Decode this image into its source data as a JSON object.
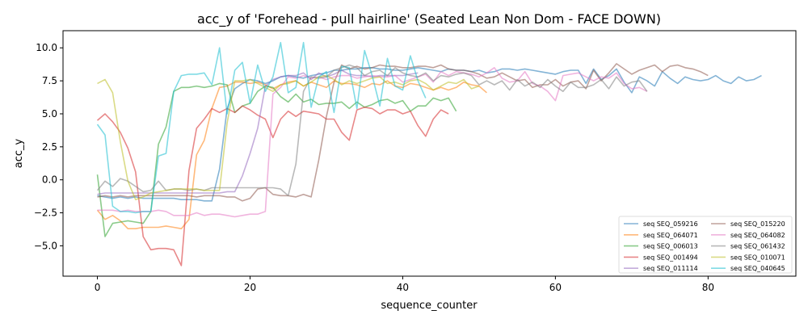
{
  "chart_data": {
    "type": "line",
    "title": "acc_y of 'Forehead - pull hairline' (Seated Lean Non Dom - FACE DOWN)",
    "xlabel": "sequence_counter",
    "ylabel": "acc_y",
    "xlim": [
      -4.5,
      91.5
    ],
    "ylim": [
      -7.3,
      11.3
    ],
    "xticks": [
      0,
      20,
      40,
      60,
      80
    ],
    "yticks": [
      -5.0,
      -2.5,
      0.0,
      2.5,
      5.0,
      7.5,
      10.0
    ],
    "xtick_labels": [
      "0",
      "20",
      "40",
      "60",
      "80"
    ],
    "ytick_labels": [
      "−5.0",
      "−2.5",
      "0.0",
      "2.5",
      "5.0",
      "7.5",
      "10.0"
    ],
    "grid": false,
    "legend_position": "lower-right",
    "legend_columns": 2,
    "series": [
      {
        "name": "seq SEQ_059216",
        "color": "#1f77b4",
        "x": [
          0,
          1,
          2,
          3,
          4,
          5,
          6,
          7,
          8,
          9,
          10,
          11,
          12,
          13,
          14,
          15,
          16,
          17,
          18,
          19,
          20,
          21,
          22,
          23,
          24,
          25,
          26,
          27,
          28,
          29,
          30,
          31,
          32,
          33,
          34,
          35,
          36,
          37,
          38,
          39,
          40,
          41,
          42,
          43,
          44,
          45,
          46,
          47,
          48,
          49,
          50,
          51,
          52,
          53,
          54,
          55,
          56,
          57,
          58,
          59,
          60,
          61,
          62,
          63,
          64,
          65,
          66,
          67,
          68,
          69,
          70,
          71,
          72,
          73,
          74,
          75,
          76,
          77,
          78,
          79,
          80,
          81,
          82,
          83,
          84,
          85,
          86,
          87
        ],
        "y": [
          -1.2,
          -1.3,
          -1.4,
          -1.3,
          -1.4,
          -1.3,
          -1.4,
          -1.4,
          -1.4,
          -1.4,
          -1.4,
          -1.5,
          -1.5,
          -1.5,
          -1.6,
          -1.6,
          0.8,
          5.4,
          6.9,
          7.3,
          7.6,
          7.5,
          7.3,
          7.5,
          7.8,
          7.9,
          7.8,
          7.7,
          7.9,
          8.0,
          8.1,
          8.3,
          8.3,
          8.4,
          8.4,
          8.5,
          8.5,
          8.4,
          8.4,
          8.3,
          8.3,
          8.4,
          8.5,
          8.4,
          8.3,
          8.2,
          8.4,
          8.3,
          8.3,
          8.2,
          8.3,
          8.1,
          8.2,
          8.4,
          8.4,
          8.3,
          8.4,
          8.3,
          8.2,
          8.1,
          8.0,
          8.2,
          8.3,
          8.3,
          7.3,
          8.4,
          7.6,
          7.9,
          8.4,
          7.4,
          6.6,
          7.8,
          7.5,
          7.1,
          8.2,
          7.7,
          7.3,
          7.8,
          7.6,
          7.5,
          7.6,
          7.9,
          7.5,
          7.3,
          7.8,
          7.5,
          7.6,
          7.9
        ]
      },
      {
        "name": "seq SEQ_064071",
        "color": "#ff7f0e",
        "x": [
          0,
          1,
          2,
          3,
          4,
          5,
          6,
          7,
          8,
          9,
          10,
          11,
          12,
          13,
          14,
          15,
          16,
          17,
          18,
          19,
          20,
          21,
          22,
          23,
          24,
          25,
          26,
          27,
          28,
          29,
          30,
          31,
          32,
          33,
          34,
          35,
          36,
          37,
          38,
          39,
          40,
          41,
          42,
          43,
          44,
          45,
          46,
          47,
          48,
          49,
          50,
          51
        ],
        "y": [
          -2.3,
          -3.0,
          -2.7,
          -3.1,
          -3.7,
          -3.7,
          -3.6,
          -3.6,
          -3.6,
          -3.5,
          -3.6,
          -3.7,
          -3.0,
          1.9,
          3.0,
          5.4,
          7.0,
          7.1,
          7.4,
          7.4,
          7.3,
          7.4,
          7.2,
          6.9,
          7.2,
          7.4,
          7.5,
          7.1,
          7.4,
          7.2,
          7.0,
          7.5,
          7.3,
          7.3,
          7.2,
          7.0,
          7.3,
          7.2,
          7.5,
          7.1,
          7.0,
          7.3,
          7.2,
          7.0,
          6.8,
          7.0,
          6.8,
          7.0,
          7.4,
          7.2,
          7.1,
          6.6
        ]
      },
      {
        "name": "seq SEQ_006013",
        "color": "#2ca02c",
        "x": [
          0,
          1,
          2,
          3,
          4,
          5,
          6,
          7,
          8,
          9,
          10,
          11,
          12,
          13,
          14,
          15,
          16,
          17,
          18,
          19,
          20,
          21,
          22,
          23,
          24,
          25,
          26,
          27,
          28,
          29,
          30,
          31,
          32,
          33,
          34,
          35,
          36,
          37,
          38,
          39,
          40,
          41,
          42,
          43,
          44,
          45,
          46,
          47
        ],
        "y": [
          0.4,
          -4.3,
          -3.3,
          -3.2,
          -3.1,
          -3.2,
          -3.3,
          -2.4,
          2.7,
          4.0,
          6.7,
          7.0,
          7.0,
          7.1,
          7.0,
          7.1,
          7.3,
          7.2,
          5.1,
          5.6,
          5.8,
          6.7,
          7.1,
          7.0,
          6.3,
          5.9,
          6.5,
          5.9,
          6.1,
          5.7,
          5.8,
          5.8,
          5.9,
          5.4,
          5.9,
          5.5,
          5.7,
          6.0,
          6.1,
          5.8,
          6.0,
          5.2,
          5.6,
          5.6,
          6.2,
          6.0,
          6.2,
          5.2
        ]
      },
      {
        "name": "seq SEQ_001494",
        "color": "#d62728",
        "x": [
          0,
          1,
          2,
          3,
          4,
          5,
          6,
          7,
          8,
          9,
          10,
          11,
          12,
          13,
          14,
          15,
          16,
          17,
          18,
          19,
          20,
          21,
          22,
          23,
          24,
          25,
          26,
          27,
          28,
          29,
          30,
          31,
          32,
          33,
          34,
          35,
          36,
          37,
          38,
          39,
          40,
          41,
          42,
          43,
          44,
          45,
          46
        ],
        "y": [
          4.5,
          5.0,
          4.4,
          3.6,
          2.4,
          0.6,
          -4.3,
          -5.3,
          -5.2,
          -5.2,
          -5.3,
          -6.5,
          0.7,
          3.9,
          4.6,
          5.4,
          5.1,
          5.4,
          5.1,
          5.6,
          5.3,
          4.9,
          4.6,
          3.2,
          4.6,
          5.2,
          4.8,
          5.2,
          5.1,
          5.0,
          4.6,
          4.6,
          3.6,
          3.0,
          5.3,
          5.5,
          5.4,
          5.0,
          5.3,
          5.3,
          5.0,
          5.2,
          4.1,
          3.3,
          4.6,
          5.3,
          5.0
        ]
      },
      {
        "name": "seq SEQ_011114",
        "color": "#9467bd",
        "x": [
          0,
          1,
          2,
          3,
          4,
          5,
          6,
          7,
          8,
          9,
          10,
          11,
          12,
          13,
          14,
          15,
          16,
          17,
          18,
          19,
          20,
          21,
          22,
          23,
          24,
          25,
          26,
          27,
          28,
          29,
          30,
          31,
          32,
          33,
          34,
          35,
          36,
          37,
          38,
          39,
          40,
          41,
          42
        ],
        "y": [
          -1.1,
          -1.0,
          -1.0,
          -1.0,
          -1.0,
          -1.0,
          -1.0,
          -1.0,
          -1.0,
          -1.0,
          -1.0,
          -1.0,
          -1.0,
          -1.0,
          -1.0,
          -1.0,
          -1.0,
          -0.9,
          -0.9,
          0.3,
          2.0,
          3.9,
          7.1,
          7.6,
          7.8,
          7.9,
          7.9,
          8.1,
          7.6,
          8.1,
          7.8,
          8.0,
          8.3,
          8.0,
          7.9,
          7.9,
          7.8,
          7.9,
          7.9,
          7.9,
          7.9,
          8.0,
          8.1
        ]
      },
      {
        "name": "seq SEQ_015220",
        "color": "#8c564b",
        "x": [
          0,
          1,
          2,
          3,
          4,
          5,
          6,
          7,
          8,
          9,
          10,
          11,
          12,
          13,
          14,
          15,
          16,
          17,
          18,
          19,
          20,
          21,
          22,
          23,
          24,
          25,
          26,
          27,
          28,
          29,
          30,
          31,
          32,
          33,
          34,
          35,
          36,
          37,
          38,
          39,
          40,
          41,
          42,
          43,
          44,
          45,
          46,
          47,
          48,
          49,
          50,
          51,
          52,
          53,
          54,
          55,
          56,
          57,
          58,
          59,
          60,
          61,
          62,
          63,
          64,
          65,
          66,
          67,
          68,
          69,
          70,
          71,
          72,
          73,
          74,
          75,
          76,
          77,
          78,
          79,
          80
        ],
        "y": [
          -1.3,
          -1.2,
          -1.3,
          -1.2,
          -1.3,
          -1.2,
          -1.2,
          -1.2,
          -1.2,
          -1.2,
          -1.2,
          -1.2,
          -1.2,
          -1.3,
          -1.2,
          -1.2,
          -1.2,
          -1.3,
          -1.3,
          -1.6,
          -1.4,
          -0.7,
          -0.6,
          -1.1,
          -1.2,
          -1.2,
          -1.3,
          -1.1,
          -1.3,
          1.5,
          4.8,
          7.4,
          8.7,
          8.4,
          8.6,
          8.4,
          8.5,
          8.7,
          8.6,
          8.6,
          8.5,
          8.5,
          8.6,
          8.6,
          8.5,
          8.7,
          8.4,
          8.3,
          8.3,
          8.2,
          8.0,
          7.7,
          7.8,
          8.1,
          7.8,
          7.5,
          7.6,
          7.0,
          7.2,
          7.2,
          7.6,
          7.1,
          7.4,
          7.5,
          6.9,
          8.3,
          7.5,
          8.1,
          8.8,
          8.4,
          8.0,
          8.3,
          8.5,
          8.7,
          8.2,
          8.6,
          8.7,
          8.5,
          8.4,
          8.2,
          7.9
        ]
      },
      {
        "name": "seq SEQ_064082",
        "color": "#e377c2",
        "x": [
          0,
          1,
          2,
          3,
          4,
          5,
          6,
          7,
          8,
          9,
          10,
          11,
          12,
          13,
          14,
          15,
          16,
          17,
          18,
          19,
          20,
          21,
          22,
          23,
          24,
          25,
          26,
          27,
          28,
          29,
          30,
          31,
          32,
          33,
          34,
          35,
          36,
          37,
          38,
          39,
          40,
          41,
          42,
          43,
          44,
          45,
          46,
          47,
          48,
          49,
          50,
          51,
          52,
          53,
          54,
          55,
          56,
          57,
          58,
          59,
          60,
          61,
          62,
          63,
          64,
          65,
          66,
          67,
          68,
          69,
          70,
          71,
          72
        ],
        "y": [
          -2.3,
          -2.3,
          -2.3,
          -2.4,
          -2.3,
          -2.4,
          -2.4,
          -2.4,
          -2.3,
          -2.4,
          -2.7,
          -2.7,
          -2.7,
          -2.5,
          -2.7,
          -2.6,
          -2.6,
          -2.7,
          -2.8,
          -2.7,
          -2.6,
          -2.6,
          -2.4,
          6.5,
          7.0,
          7.8,
          7.7,
          7.9,
          7.7,
          7.8,
          7.6,
          7.8,
          7.9,
          7.9,
          7.7,
          7.8,
          7.9,
          7.8,
          7.8,
          7.9,
          7.4,
          7.6,
          7.8,
          8.0,
          7.4,
          8.2,
          7.9,
          8.2,
          8.1,
          8.0,
          7.8,
          8.1,
          8.5,
          7.7,
          7.4,
          7.5,
          8.2,
          7.3,
          7.1,
          6.7,
          6.0,
          7.9,
          8.0,
          8.1,
          7.8,
          7.5,
          7.8,
          7.7,
          8.1,
          7.3,
          6.9,
          7.0,
          6.7
        ]
      },
      {
        "name": "seq SEQ_061432",
        "color": "#7f7f7f",
        "x": [
          0,
          1,
          2,
          3,
          4,
          5,
          6,
          7,
          8,
          9,
          10,
          11,
          12,
          13,
          14,
          15,
          16,
          17,
          18,
          19,
          20,
          21,
          22,
          23,
          24,
          25,
          26,
          27,
          28,
          29,
          30,
          31,
          32,
          33,
          34,
          35,
          36,
          37,
          38,
          39,
          40,
          41,
          42,
          43,
          44,
          45,
          46,
          47,
          48,
          49,
          50,
          51,
          52,
          53,
          54,
          55,
          56,
          57,
          58,
          59,
          60,
          61,
          62,
          63,
          64,
          65,
          66,
          67,
          68,
          69,
          70,
          71,
          72
        ],
        "y": [
          -0.8,
          -0.1,
          -0.5,
          0.1,
          -0.1,
          -0.5,
          -0.9,
          -0.8,
          -0.1,
          -0.8,
          -0.7,
          -0.7,
          -0.8,
          -0.7,
          -0.8,
          -0.6,
          -0.6,
          -0.6,
          -0.6,
          -0.6,
          -0.6,
          -0.6,
          -0.6,
          -0.6,
          -0.7,
          -1.2,
          1.2,
          6.7,
          7.8,
          7.7,
          7.8,
          8.3,
          8.5,
          8.7,
          8.5,
          7.9,
          8.2,
          8.3,
          7.9,
          8.5,
          8.1,
          7.9,
          7.8,
          8.1,
          7.5,
          7.9,
          7.8,
          8.0,
          8.1,
          7.9,
          7.2,
          7.5,
          7.2,
          7.5,
          6.8,
          7.6,
          7.1,
          7.4,
          7.0,
          7.6,
          7.1,
          6.7,
          7.4,
          7.0,
          7.0,
          7.2,
          7.6,
          6.9,
          7.8,
          7.1,
          7.4,
          7.5,
          6.7
        ]
      },
      {
        "name": "seq SEQ_010071",
        "color": "#bcbd22",
        "x": [
          0,
          1,
          2,
          3,
          4,
          5,
          6,
          7,
          8,
          9,
          10,
          11,
          12,
          13,
          14,
          15,
          16,
          17,
          18,
          19,
          20,
          21,
          22,
          23,
          24,
          25,
          26,
          27,
          28,
          29,
          30,
          31,
          32,
          33,
          34,
          35,
          36,
          37,
          38,
          39,
          40,
          41,
          42,
          43,
          44,
          45,
          46,
          47,
          48,
          49,
          50
        ],
        "y": [
          7.3,
          7.6,
          6.6,
          2.9,
          -0.1,
          -1.5,
          -1.3,
          -1.0,
          -0.9,
          -0.8,
          -0.7,
          -0.7,
          -0.7,
          -0.7,
          -0.8,
          -0.8,
          -0.8,
          4.3,
          7.5,
          7.5,
          7.6,
          7.3,
          7.0,
          6.7,
          7.2,
          7.3,
          7.5,
          7.1,
          7.4,
          7.8,
          7.9,
          7.6,
          7.2,
          7.5,
          7.3,
          7.5,
          7.7,
          7.8,
          7.3,
          7.4,
          7.2,
          7.5,
          7.6,
          7.3,
          6.8,
          7.1,
          7.4,
          7.3,
          7.6,
          6.9,
          7.1
        ]
      },
      {
        "name": "seq SEQ_040645",
        "color": "#17becf",
        "x": [
          0,
          1,
          2,
          3,
          4,
          5,
          6,
          7,
          8,
          9,
          10,
          11,
          12,
          13,
          14,
          15,
          16,
          17,
          18,
          19,
          20,
          21,
          22,
          23,
          24,
          25,
          26,
          27,
          28,
          29,
          30,
          31,
          32,
          33,
          34,
          35,
          36,
          37,
          38,
          39,
          40,
          41,
          42,
          43
        ],
        "y": [
          4.2,
          3.4,
          -2.0,
          -2.4,
          -2.4,
          -2.5,
          -2.4,
          -2.4,
          1.8,
          2.0,
          6.7,
          7.9,
          8.0,
          8.0,
          8.1,
          7.2,
          10.0,
          5.0,
          8.3,
          8.9,
          5.8,
          8.7,
          6.7,
          7.8,
          10.4,
          6.6,
          7.0,
          10.4,
          5.5,
          7.8,
          8.2,
          5.1,
          8.6,
          8.5,
          5.4,
          9.8,
          7.9,
          5.6,
          9.2,
          7.1,
          6.8,
          9.4,
          7.5,
          6.2
        ]
      }
    ]
  }
}
